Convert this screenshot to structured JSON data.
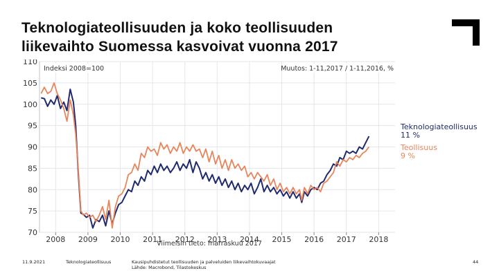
{
  "slide": {
    "title_line1": "Teknologiateollisuuden ja koko teollisuuden",
    "title_line2": "liikevaihto Suomessa kasvoivat vuonna 2017",
    "footer": {
      "date": "11.9.2021",
      "organization": "Teknologiateollisuus",
      "source_line1": "Kausipuhdistetut teollisuuden ja palveluiden liikevaihtokuvaajat",
      "source_line2": "Lähde: Macrobond, Tilastokeskus",
      "page": "44"
    },
    "logo_icon": "corner-bracket-logo-icon"
  },
  "chart_data": {
    "type": "line",
    "index_label": "Indeksi 2008=100",
    "change_label": "Muutos: 1-11,2017 / 1-11,2016, %",
    "caption": "Viimeisin tieto: marraskuu 2017",
    "ylim": [
      70,
      110
    ],
    "y_ticks": [
      70,
      75,
      80,
      85,
      90,
      95,
      100,
      105,
      110
    ],
    "x_range": [
      2007.5,
      2018.55
    ],
    "x_ticks": [
      2008,
      2009,
      2010,
      2011,
      2012,
      2013,
      2014,
      2015,
      2016,
      2017,
      2018
    ],
    "grid": true,
    "series": [
      {
        "name": "Teknologiateollisuus",
        "change": "11 %",
        "color": "#1f2a6e",
        "points": [
          [
            2007.55,
            101.5
          ],
          [
            2007.65,
            101.3
          ],
          [
            2007.75,
            99.5
          ],
          [
            2007.85,
            101.0
          ],
          [
            2007.95,
            100.0
          ],
          [
            2008.05,
            102.0
          ],
          [
            2008.15,
            99.0
          ],
          [
            2008.25,
            100.5
          ],
          [
            2008.35,
            98.5
          ],
          [
            2008.45,
            103.5
          ],
          [
            2008.55,
            100.5
          ],
          [
            2008.62,
            95.0
          ],
          [
            2008.7,
            84.0
          ],
          [
            2008.78,
            74.5
          ],
          [
            2008.86,
            74.2
          ],
          [
            2008.95,
            73.5
          ],
          [
            2009.05,
            74.0
          ],
          [
            2009.15,
            71.0
          ],
          [
            2009.25,
            73.0
          ],
          [
            2009.35,
            72.5
          ],
          [
            2009.45,
            74.0
          ],
          [
            2009.55,
            71.5
          ],
          [
            2009.65,
            75.0
          ],
          [
            2009.75,
            72.0
          ],
          [
            2009.85,
            74.5
          ],
          [
            2009.95,
            76.5
          ],
          [
            2010.05,
            77.0
          ],
          [
            2010.15,
            78.5
          ],
          [
            2010.25,
            80.0
          ],
          [
            2010.35,
            79.5
          ],
          [
            2010.45,
            82.0
          ],
          [
            2010.55,
            81.0
          ],
          [
            2010.65,
            83.0
          ],
          [
            2010.75,
            82.0
          ],
          [
            2010.85,
            84.5
          ],
          [
            2010.95,
            83.5
          ],
          [
            2011.05,
            85.5
          ],
          [
            2011.15,
            84.0
          ],
          [
            2011.25,
            86.0
          ],
          [
            2011.35,
            84.5
          ],
          [
            2011.45,
            85.5
          ],
          [
            2011.55,
            84.0
          ],
          [
            2011.65,
            85.0
          ],
          [
            2011.75,
            86.5
          ],
          [
            2011.85,
            84.5
          ],
          [
            2011.95,
            86.0
          ],
          [
            2012.05,
            85.0
          ],
          [
            2012.15,
            87.0
          ],
          [
            2012.25,
            84.0
          ],
          [
            2012.35,
            86.5
          ],
          [
            2012.45,
            85.0
          ],
          [
            2012.55,
            82.5
          ],
          [
            2012.65,
            84.0
          ],
          [
            2012.75,
            82.0
          ],
          [
            2012.85,
            83.5
          ],
          [
            2012.95,
            81.5
          ],
          [
            2013.05,
            83.0
          ],
          [
            2013.15,
            81.0
          ],
          [
            2013.25,
            82.5
          ],
          [
            2013.35,
            80.5
          ],
          [
            2013.45,
            82.0
          ],
          [
            2013.55,
            80.0
          ],
          [
            2013.65,
            81.5
          ],
          [
            2013.75,
            79.5
          ],
          [
            2013.85,
            81.0
          ],
          [
            2013.95,
            80.0
          ],
          [
            2014.05,
            81.5
          ],
          [
            2014.15,
            79.0
          ],
          [
            2014.25,
            80.5
          ],
          [
            2014.35,
            82.5
          ],
          [
            2014.45,
            79.5
          ],
          [
            2014.55,
            81.0
          ],
          [
            2014.65,
            79.5
          ],
          [
            2014.75,
            80.5
          ],
          [
            2014.85,
            79.0
          ],
          [
            2014.95,
            80.0
          ],
          [
            2015.05,
            78.5
          ],
          [
            2015.15,
            79.5
          ],
          [
            2015.25,
            78.0
          ],
          [
            2015.35,
            79.5
          ],
          [
            2015.45,
            78.0
          ],
          [
            2015.55,
            79.0
          ],
          [
            2015.62,
            77.0
          ],
          [
            2015.7,
            79.5
          ],
          [
            2015.8,
            78.5
          ],
          [
            2015.9,
            80.0
          ],
          [
            2016.0,
            80.5
          ],
          [
            2016.1,
            80.0
          ],
          [
            2016.2,
            81.5
          ],
          [
            2016.3,
            82.0
          ],
          [
            2016.4,
            83.5
          ],
          [
            2016.5,
            84.5
          ],
          [
            2016.6,
            86.0
          ],
          [
            2016.7,
            85.5
          ],
          [
            2016.8,
            87.5
          ],
          [
            2016.9,
            87.0
          ],
          [
            2017.0,
            89.0
          ],
          [
            2017.1,
            88.5
          ],
          [
            2017.2,
            89.0
          ],
          [
            2017.3,
            88.5
          ],
          [
            2017.4,
            90.0
          ],
          [
            2017.5,
            89.5
          ],
          [
            2017.6,
            91.0
          ],
          [
            2017.7,
            92.5
          ]
        ]
      },
      {
        "name": "Teollisuus",
        "change": "9 %",
        "color": "#e8855a",
        "points": [
          [
            2007.55,
            102.5
          ],
          [
            2007.65,
            104.0
          ],
          [
            2007.75,
            102.5
          ],
          [
            2007.85,
            103.0
          ],
          [
            2007.95,
            105.0
          ],
          [
            2008.05,
            102.5
          ],
          [
            2008.15,
            101.0
          ],
          [
            2008.25,
            99.0
          ],
          [
            2008.35,
            96.0
          ],
          [
            2008.45,
            101.0
          ],
          [
            2008.55,
            97.5
          ],
          [
            2008.62,
            93.0
          ],
          [
            2008.7,
            85.0
          ],
          [
            2008.78,
            75.0
          ],
          [
            2008.86,
            74.0
          ],
          [
            2008.95,
            74.5
          ],
          [
            2009.05,
            73.5
          ],
          [
            2009.15,
            74.0
          ],
          [
            2009.25,
            72.5
          ],
          [
            2009.35,
            74.0
          ],
          [
            2009.45,
            76.0
          ],
          [
            2009.55,
            73.0
          ],
          [
            2009.65,
            77.5
          ],
          [
            2009.75,
            71.0
          ],
          [
            2009.85,
            76.0
          ],
          [
            2009.95,
            78.5
          ],
          [
            2010.05,
            79.0
          ],
          [
            2010.15,
            80.5
          ],
          [
            2010.25,
            83.5
          ],
          [
            2010.35,
            84.0
          ],
          [
            2010.45,
            86.0
          ],
          [
            2010.55,
            84.5
          ],
          [
            2010.65,
            88.5
          ],
          [
            2010.75,
            87.5
          ],
          [
            2010.85,
            90.0
          ],
          [
            2010.95,
            89.0
          ],
          [
            2011.05,
            89.5
          ],
          [
            2011.15,
            88.0
          ],
          [
            2011.25,
            91.0
          ],
          [
            2011.35,
            89.5
          ],
          [
            2011.45,
            90.5
          ],
          [
            2011.55,
            88.5
          ],
          [
            2011.65,
            90.0
          ],
          [
            2011.75,
            89.0
          ],
          [
            2011.85,
            91.0
          ],
          [
            2011.95,
            88.5
          ],
          [
            2012.05,
            90.0
          ],
          [
            2012.15,
            89.0
          ],
          [
            2012.25,
            90.5
          ],
          [
            2012.35,
            89.0
          ],
          [
            2012.45,
            89.5
          ],
          [
            2012.55,
            87.5
          ],
          [
            2012.65,
            89.5
          ],
          [
            2012.75,
            86.5
          ],
          [
            2012.85,
            89.0
          ],
          [
            2012.95,
            86.0
          ],
          [
            2013.05,
            88.0
          ],
          [
            2013.15,
            85.0
          ],
          [
            2013.25,
            87.0
          ],
          [
            2013.35,
            84.5
          ],
          [
            2013.45,
            87.0
          ],
          [
            2013.55,
            85.0
          ],
          [
            2013.65,
            86.0
          ],
          [
            2013.75,
            84.5
          ],
          [
            2013.85,
            85.5
          ],
          [
            2013.95,
            83.0
          ],
          [
            2014.05,
            84.0
          ],
          [
            2014.15,
            82.5
          ],
          [
            2014.25,
            84.0
          ],
          [
            2014.35,
            83.0
          ],
          [
            2014.45,
            82.0
          ],
          [
            2014.55,
            83.5
          ],
          [
            2014.65,
            81.0
          ],
          [
            2014.75,
            82.5
          ],
          [
            2014.85,
            80.0
          ],
          [
            2014.95,
            81.5
          ],
          [
            2015.05,
            79.5
          ],
          [
            2015.15,
            80.5
          ],
          [
            2015.25,
            79.0
          ],
          [
            2015.35,
            80.5
          ],
          [
            2015.45,
            79.0
          ],
          [
            2015.55,
            80.0
          ],
          [
            2015.62,
            77.5
          ],
          [
            2015.7,
            80.5
          ],
          [
            2015.8,
            79.0
          ],
          [
            2015.9,
            81.0
          ],
          [
            2016.0,
            80.0
          ],
          [
            2016.1,
            80.5
          ],
          [
            2016.2,
            79.5
          ],
          [
            2016.3,
            81.5
          ],
          [
            2016.4,
            82.0
          ],
          [
            2016.5,
            83.0
          ],
          [
            2016.6,
            84.0
          ],
          [
            2016.7,
            86.5
          ],
          [
            2016.8,
            85.5
          ],
          [
            2016.9,
            87.0
          ],
          [
            2017.0,
            86.5
          ],
          [
            2017.1,
            87.5
          ],
          [
            2017.2,
            87.0
          ],
          [
            2017.3,
            88.0
          ],
          [
            2017.4,
            87.5
          ],
          [
            2017.5,
            88.5
          ],
          [
            2017.6,
            89.0
          ],
          [
            2017.7,
            90.0
          ]
        ]
      }
    ]
  }
}
